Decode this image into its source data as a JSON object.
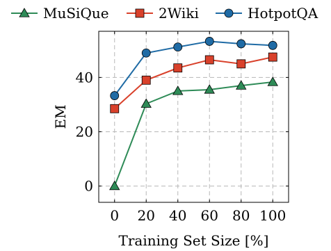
{
  "chart_data": {
    "type": "line",
    "title": "",
    "xlabel": "Training Set Size [%]",
    "ylabel": "EM",
    "x": [
      0,
      20,
      40,
      60,
      80,
      100
    ],
    "xticks": [
      "0",
      "20",
      "40",
      "60",
      "80",
      "100"
    ],
    "yticks": [
      "0",
      "20",
      "40"
    ],
    "ytick_values": [
      0,
      20,
      40
    ],
    "xlim": [
      -10,
      110
    ],
    "ylim": [
      -6,
      57
    ],
    "grid": true,
    "legend_position": "top",
    "series": [
      {
        "name": "MuSiQue",
        "marker": "triangle",
        "color": "#2e8b57",
        "values": [
          0,
          30.3,
          35.0,
          35.5,
          37.0,
          38.3
        ]
      },
      {
        "name": "2Wiki",
        "marker": "square",
        "color": "#d9412b",
        "values": [
          28.5,
          39.0,
          43.5,
          46.5,
          45.0,
          47.5
        ]
      },
      {
        "name": "HotpotQA",
        "marker": "circle",
        "color": "#1f6ba5",
        "values": [
          33.3,
          49.0,
          51.2,
          53.3,
          52.4,
          51.8
        ]
      }
    ]
  }
}
